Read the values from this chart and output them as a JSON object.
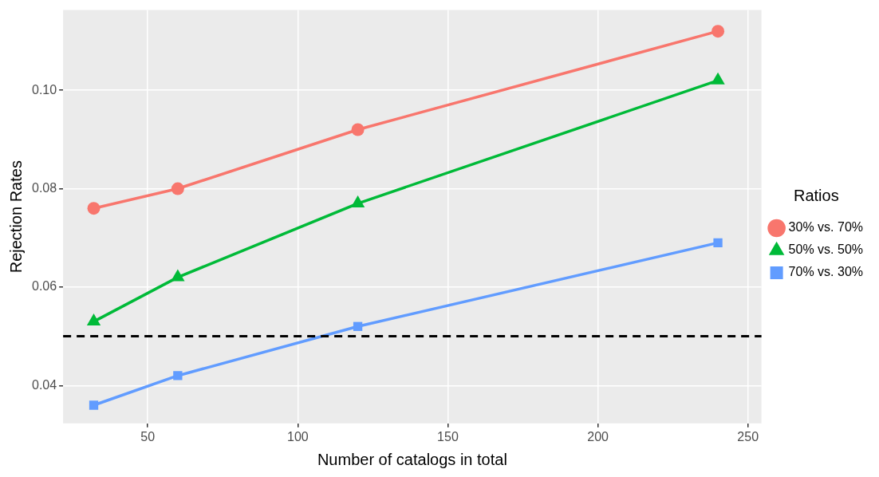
{
  "chart_data": {
    "type": "line",
    "xlabel": "Number of catalogs in total",
    "ylabel": "Rejection Rates",
    "legend_title": "Ratios",
    "legend": "right",
    "grid": true,
    "x": [
      32,
      60,
      120,
      240
    ],
    "xlim": [
      21.8,
      254.5
    ],
    "xticks": [
      50,
      100,
      150,
      200,
      250
    ],
    "ylim": [
      0.0323,
      0.1163
    ],
    "yticks": [
      0.04,
      0.06,
      0.08,
      {
        "value": 0.1,
        "label": "0.10"
      }
    ],
    "series": [
      {
        "name": "30% vs. 70%",
        "color": "#f8766d",
        "marker": "circle",
        "values": [
          0.076,
          0.08,
          0.092,
          0.112
        ]
      },
      {
        "name": "50% vs. 50%",
        "color": "#00ba38",
        "marker": "triangle",
        "values": [
          0.053,
          0.062,
          0.077,
          0.102
        ]
      },
      {
        "name": "70% vs. 30%",
        "color": "#619cff",
        "marker": "square",
        "values": [
          0.036,
          0.042,
          0.052,
          0.069
        ]
      }
    ],
    "ref_lines": [
      {
        "axis": "y",
        "value": 0.05,
        "color": "#000000",
        "line_style": "dashed"
      }
    ]
  }
}
